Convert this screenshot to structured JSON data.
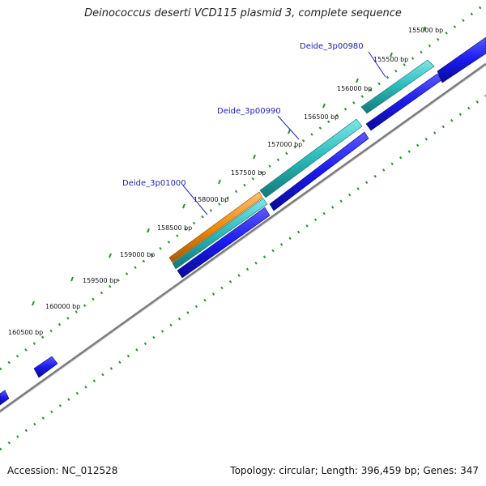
{
  "title": "Deinococcus deserti VCD115 plasmid 3, complete sequence",
  "footer": {
    "accession": "Accession: NC_012528",
    "summary": "Topology: circular; Length: 396,459 bp; Genes: 347"
  },
  "ticks": [
    "155000 bp",
    "155500 bp",
    "156000 bp",
    "156500 bp",
    "157000 bp",
    "157500 bp",
    "158000 bp",
    "158500 bp",
    "159000 bp",
    "159500 bp",
    "160000 bp",
    "160500 bp"
  ],
  "genes": [
    {
      "label": "Deide_3p00980"
    },
    {
      "label": "Deide_3p00990"
    },
    {
      "label": "Deide_3p01000"
    }
  ],
  "colors": {
    "cds": "#1a1aee",
    "gene_teal": "#2ab9b9",
    "gene_orange": "#f08a0c",
    "backbone": "#8a8a8a",
    "tick": "#1f7a1f",
    "label": "#2020b8"
  }
}
